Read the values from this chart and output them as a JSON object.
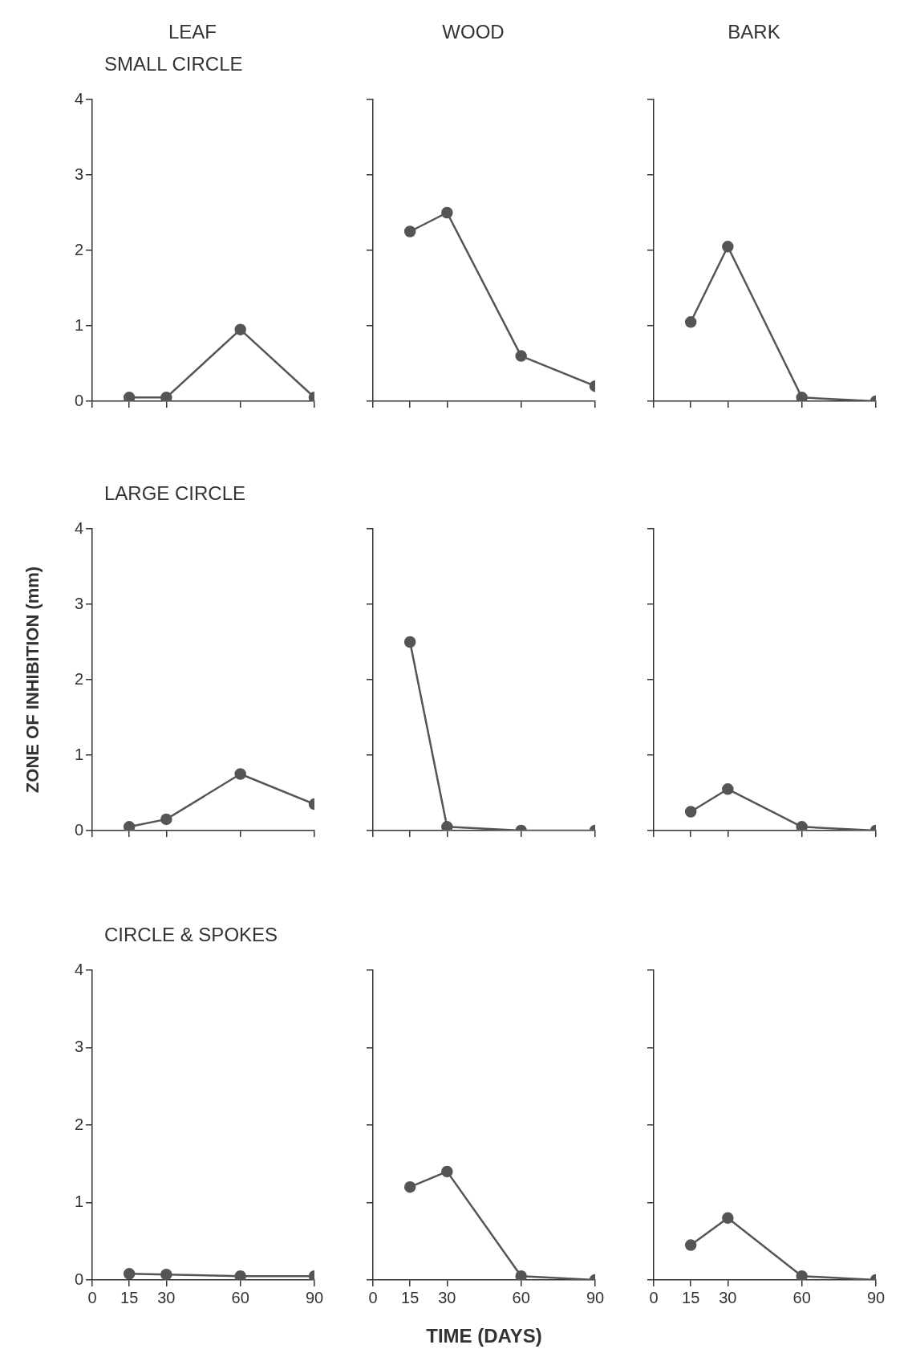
{
  "chart_data": [
    {
      "type": "line",
      "title": "LEAF",
      "subtitle": "SMALL CIRCLE",
      "x": [
        15,
        30,
        60,
        90
      ],
      "series": [
        {
          "color": "#555555",
          "values": [
            0.05,
            0.05,
            0.95,
            0.05
          ]
        }
      ],
      "xlim": [
        0,
        90
      ],
      "xticks": [
        0,
        15,
        30,
        60,
        90
      ],
      "ylim": [
        0,
        4
      ],
      "yticks": [
        0,
        1,
        2,
        3,
        4
      ],
      "tick_labels": "y",
      "marker": "circle",
      "grid": false,
      "legend": false
    },
    {
      "type": "line",
      "title": "WOOD",
      "x": [
        15,
        30,
        60,
        90
      ],
      "series": [
        {
          "color": "#555555",
          "values": [
            2.25,
            2.5,
            0.6,
            0.2
          ]
        }
      ],
      "xlim": [
        0,
        90
      ],
      "xticks": [
        0,
        15,
        30,
        60,
        90
      ],
      "ylim": [
        0,
        4
      ],
      "yticks": [
        0,
        1,
        2,
        3,
        4
      ],
      "tick_labels": false,
      "marker": "circle",
      "grid": false,
      "legend": false
    },
    {
      "type": "line",
      "title": "BARK",
      "x": [
        15,
        30,
        60,
        90
      ],
      "series": [
        {
          "color": "#555555",
          "values": [
            1.05,
            2.05,
            0.05,
            0.0
          ]
        }
      ],
      "xlim": [
        0,
        90
      ],
      "xticks": [
        0,
        15,
        30,
        60,
        90
      ],
      "ylim": [
        0,
        4
      ],
      "yticks": [
        0,
        1,
        2,
        3,
        4
      ],
      "tick_labels": false,
      "marker": "circle",
      "grid": false,
      "legend": false
    },
    {
      "type": "line",
      "subtitle": "LARGE CIRCLE",
      "ylabel": "ZONE OF INHIBITION (mm)",
      "x": [
        15,
        30,
        60,
        90
      ],
      "series": [
        {
          "color": "#555555",
          "values": [
            0.05,
            0.15,
            0.75,
            0.35
          ]
        }
      ],
      "xlim": [
        0,
        90
      ],
      "xticks": [
        0,
        15,
        30,
        60,
        90
      ],
      "ylim": [
        0,
        4
      ],
      "yticks": [
        0,
        1,
        2,
        3,
        4
      ],
      "tick_labels": "y",
      "marker": "circle",
      "grid": false,
      "legend": false
    },
    {
      "type": "line",
      "x": [
        15,
        30,
        60,
        90
      ],
      "series": [
        {
          "color": "#555555",
          "values": [
            2.5,
            0.05,
            0.0,
            0.0
          ]
        }
      ],
      "xlim": [
        0,
        90
      ],
      "xticks": [
        0,
        15,
        30,
        60,
        90
      ],
      "ylim": [
        0,
        4
      ],
      "yticks": [
        0,
        1,
        2,
        3,
        4
      ],
      "tick_labels": false,
      "marker": "circle",
      "grid": false,
      "legend": false
    },
    {
      "type": "line",
      "x": [
        15,
        30,
        60,
        90
      ],
      "series": [
        {
          "color": "#555555",
          "values": [
            0.25,
            0.55,
            0.05,
            0.0
          ]
        }
      ],
      "xlim": [
        0,
        90
      ],
      "xticks": [
        0,
        15,
        30,
        60,
        90
      ],
      "ylim": [
        0,
        4
      ],
      "yticks": [
        0,
        1,
        2,
        3,
        4
      ],
      "tick_labels": false,
      "marker": "circle",
      "grid": false,
      "legend": false
    },
    {
      "type": "line",
      "subtitle": "CIRCLE & SPOKES",
      "x": [
        15,
        30,
        60,
        90
      ],
      "series": [
        {
          "color": "#555555",
          "values": [
            0.08,
            0.07,
            0.05,
            0.05
          ]
        }
      ],
      "xlim": [
        0,
        90
      ],
      "xticks": [
        0,
        15,
        30,
        60,
        90
      ],
      "ylim": [
        0,
        4
      ],
      "yticks": [
        0,
        1,
        2,
        3,
        4
      ],
      "marker": "circle",
      "grid": false,
      "legend": false
    },
    {
      "type": "line",
      "xlabel": "TIME (DAYS)",
      "x": [
        15,
        30,
        60,
        90
      ],
      "series": [
        {
          "color": "#555555",
          "values": [
            1.2,
            1.4,
            0.05,
            0.0
          ]
        }
      ],
      "xlim": [
        0,
        90
      ],
      "xticks": [
        0,
        15,
        30,
        60,
        90
      ],
      "ylim": [
        0,
        4
      ],
      "yticks": [
        0,
        1,
        2,
        3,
        4
      ],
      "tick_labels": "x",
      "marker": "circle",
      "grid": false,
      "legend": false
    },
    {
      "type": "line",
      "x": [
        15,
        30,
        60,
        90
      ],
      "series": [
        {
          "color": "#555555",
          "values": [
            0.45,
            0.8,
            0.05,
            0.0
          ]
        }
      ],
      "xlim": [
        0,
        90
      ],
      "xticks": [
        0,
        15,
        30,
        60,
        90
      ],
      "ylim": [
        0,
        4
      ],
      "yticks": [
        0,
        1,
        2,
        3,
        4
      ],
      "tick_labels": "x",
      "marker": "circle",
      "grid": false,
      "legend": false
    }
  ]
}
